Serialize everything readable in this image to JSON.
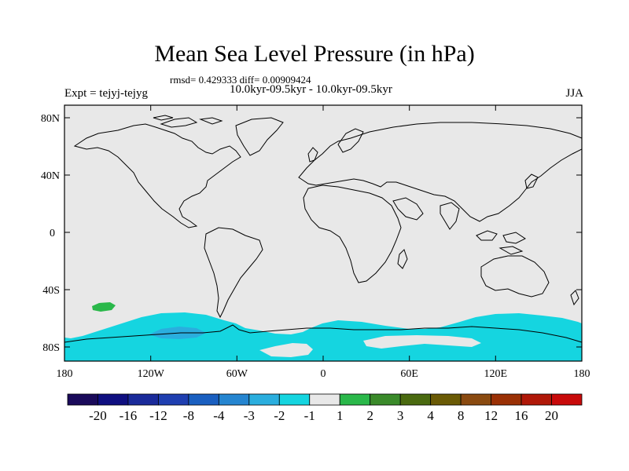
{
  "title": "Mean Sea Level Pressure (in hPa)",
  "stats": "rmsd= 0.429333 diff= 0.00909424",
  "period": "10.0kyr-09.5kyr - 10.0kyr-09.5kyr",
  "experiment": "Expt = tejyj-tejyg",
  "season": "JJA",
  "lon_ticks": [
    "180",
    "120W",
    "60W",
    "0",
    "60E",
    "120E",
    "180"
  ],
  "lat_ticks": [
    "80N",
    "40N",
    "0",
    "40S",
    "80S"
  ],
  "colorbar": {
    "colors": [
      "#1a0a5a",
      "#0f0f80",
      "#1a2a9a",
      "#1f3fb0",
      "#1a5fc0",
      "#2585d0",
      "#2aaede",
      "#15d5e0",
      "#e8e8e8",
      "#2ab84a",
      "#3a8a2a",
      "#4a6a10",
      "#6a5a05",
      "#8a4a10",
      "#9a3005",
      "#b01808",
      "#c80a0a"
    ],
    "labels": [
      "-20",
      "-16",
      "-12",
      "-8",
      "-4",
      "-3",
      "-2",
      "-1",
      "1",
      "2",
      "3",
      "4",
      "8",
      "12",
      "16",
      "20"
    ]
  },
  "colors": {
    "map_background": "#e8e8e8",
    "coastline": "#000000",
    "negative_anomaly": "#15d5e0",
    "negative_anomaly_strong": "#2aaede",
    "positive_anomaly": "#2ab84a"
  }
}
